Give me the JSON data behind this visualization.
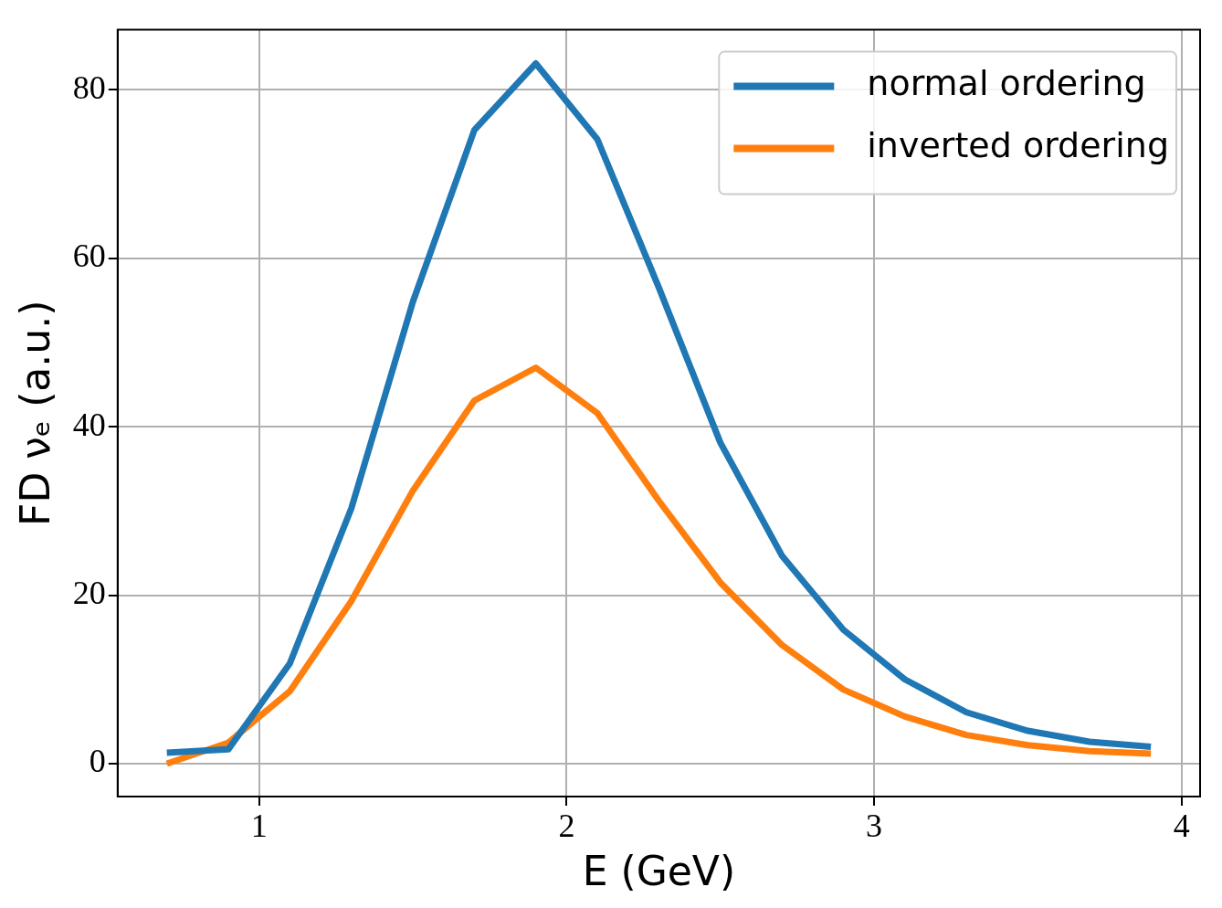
{
  "chart_data": {
    "type": "line",
    "xlabel": "E (GeV)",
    "ylabel": "FD νₑ (a.u.)",
    "x": [
      0.7,
      0.9,
      1.1,
      1.3,
      1.5,
      1.7,
      1.9,
      2.1,
      2.3,
      2.5,
      2.7,
      2.9,
      3.1,
      3.3,
      3.5,
      3.7,
      3.9
    ],
    "series": [
      {
        "name": "normal ordering",
        "color": "#1f77b4",
        "values": [
          1.3,
          1.7,
          11.9,
          30.3,
          54.8,
          75.2,
          83.1,
          74.1,
          56.5,
          38.1,
          24.7,
          15.9,
          10.0,
          6.1,
          3.9,
          2.6,
          2.0
        ]
      },
      {
        "name": "inverted ordering",
        "color": "#ff7f0e",
        "values": [
          0,
          2.5,
          8.6,
          19.3,
          32.4,
          43.1,
          47.0,
          41.6,
          31.2,
          21.5,
          14.1,
          8.8,
          5.6,
          3.4,
          2.2,
          1.5,
          1.2
        ]
      }
    ],
    "xlim": [
      0.54,
      4.06
    ],
    "ylim": [
      -3.9,
      87.1
    ],
    "xticks": [
      1,
      2,
      3,
      4
    ],
    "yticks": [
      0,
      20,
      40,
      60,
      80
    ],
    "grid": true,
    "legend": "top right",
    "marker": "none",
    "line_style": "solid"
  }
}
